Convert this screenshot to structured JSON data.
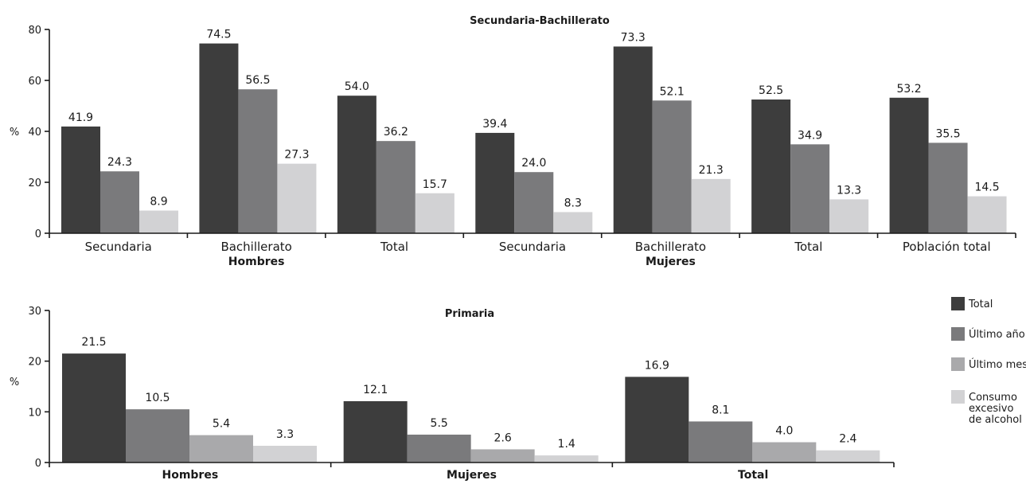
{
  "chart_data": [
    {
      "type": "bar",
      "title": "Secundaria-Bachillerato",
      "ylabel": "%",
      "ylim": [
        0,
        80
      ],
      "yticks": [
        "0",
        "20",
        "40",
        "60",
        "80"
      ],
      "categories": [
        "Secundaria",
        "Bachillerato",
        "Total",
        "Secundaria",
        "Bachillerato",
        "Total",
        "Población total"
      ],
      "groups": [
        {
          "label": "Hombres",
          "categories": [
            "Secundaria",
            "Bachillerato",
            "Total"
          ]
        },
        {
          "label": "Mujeres",
          "categories": [
            "Secundaria",
            "Bachillerato",
            "Total"
          ]
        }
      ],
      "series": [
        {
          "name": "Total",
          "color": "#3d3d3d",
          "values": [
            41.9,
            74.5,
            54.0,
            39.4,
            73.3,
            52.5,
            53.2
          ],
          "labels": [
            "41.9",
            "74.5",
            "54.0",
            "39.4",
            "73.3",
            "52.5",
            "53.2"
          ]
        },
        {
          "name": "Último año",
          "color": "#7a7a7c",
          "values": [
            24.3,
            56.5,
            36.2,
            24.0,
            52.1,
            34.9,
            35.5
          ],
          "labels": [
            "24.3",
            "56.5",
            "36.2",
            "24.0",
            "52.1",
            "34.9",
            "35.5"
          ]
        },
        {
          "name": "Consumo excesivo de alcohol",
          "color": "#d2d2d4",
          "values": [
            8.9,
            27.3,
            15.7,
            8.3,
            21.3,
            13.3,
            14.5
          ],
          "labels": [
            "8.9",
            "27.3",
            "15.7",
            "8.3",
            "21.3",
            "13.3",
            "14.5"
          ]
        }
      ],
      "grid": false
    },
    {
      "type": "bar",
      "title": "Primaria",
      "ylabel": "%",
      "ylim": [
        0,
        30
      ],
      "yticks": [
        "0",
        "10",
        "20",
        "30"
      ],
      "categories": [
        "Hombres",
        "Mujeres",
        "Total"
      ],
      "series": [
        {
          "name": "Total",
          "color": "#3d3d3d",
          "values": [
            21.5,
            12.1,
            16.9
          ],
          "labels": [
            "21.5",
            "12.1",
            "16.9"
          ]
        },
        {
          "name": "Último año",
          "color": "#7a7a7c",
          "values": [
            10.5,
            5.5,
            8.1
          ],
          "labels": [
            "10.5",
            "5.5",
            "8.1"
          ]
        },
        {
          "name": "Último mes",
          "color": "#a9a9ab",
          "values": [
            5.4,
            2.6,
            4.0
          ],
          "labels": [
            "5.4",
            "2.6",
            "4.0"
          ]
        },
        {
          "name": "Consumo excesivo de alcohol",
          "color": "#d2d2d4",
          "values": [
            3.3,
            1.4,
            2.4
          ],
          "labels": [
            "3.3",
            "1.4",
            "2.4"
          ]
        }
      ],
      "grid": false
    }
  ],
  "legend": {
    "placement": "right",
    "items": [
      {
        "label_lines": [
          "Total"
        ],
        "color": "#3d3d3d"
      },
      {
        "label_lines": [
          "Último año"
        ],
        "color": "#7a7a7c"
      },
      {
        "label_lines": [
          "Último mes"
        ],
        "color": "#a9a9ab"
      },
      {
        "label_lines": [
          "Consumo",
          "excesivo",
          "de alcohol"
        ],
        "color": "#d2d2d4"
      }
    ]
  }
}
